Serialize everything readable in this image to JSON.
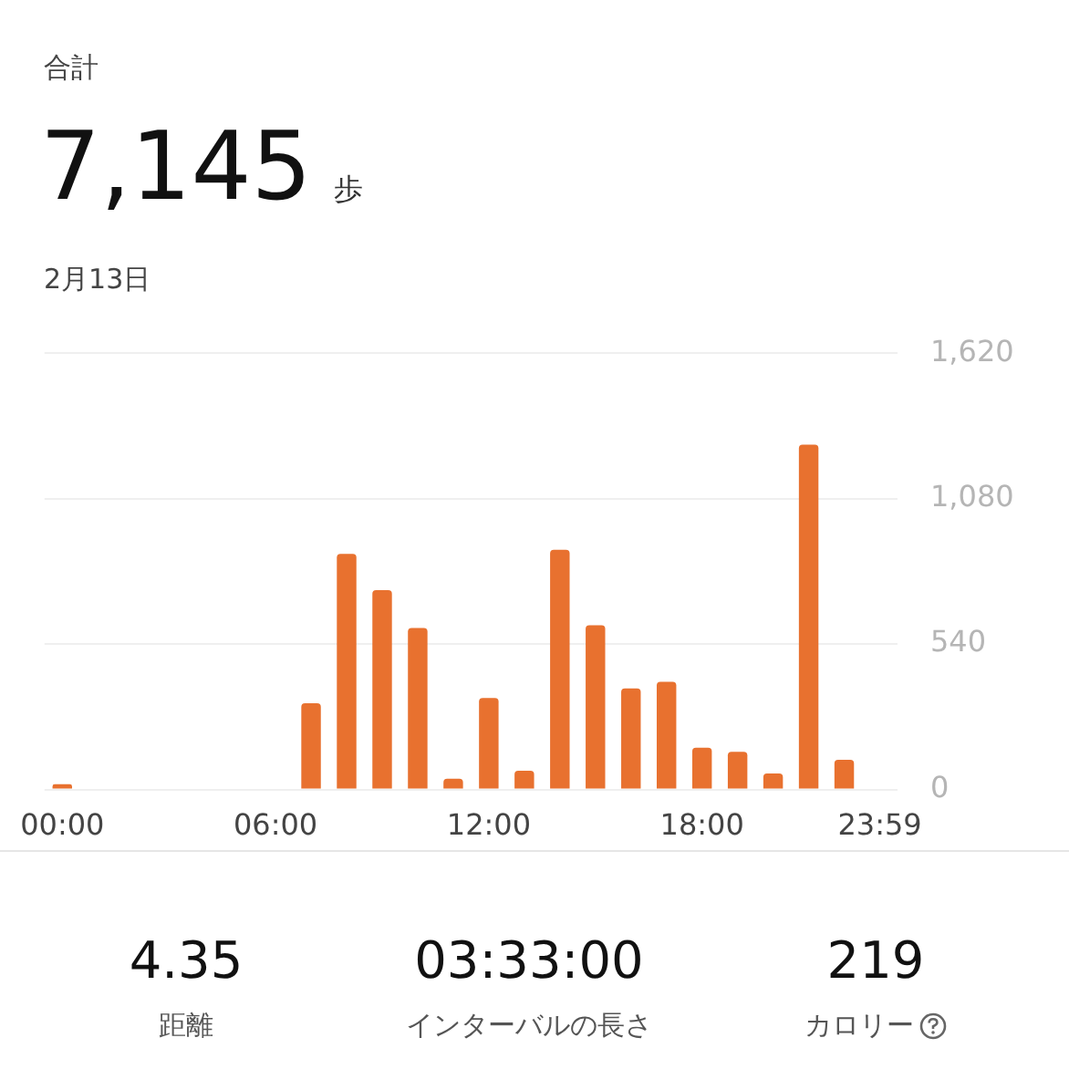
{
  "chart_data": {
    "type": "bar",
    "title": "7,145",
    "subtitle": "2月13日",
    "annotations": [
      "合計",
      "歩",
      "4.35",
      "距離",
      "03:33:00",
      "インターバルの長さ",
      "219",
      "カロリー"
    ],
    "categories": [
      "00:00",
      null,
      null,
      null,
      null,
      null,
      "06:00",
      null,
      null,
      null,
      null,
      null,
      "12:00",
      null,
      null,
      null,
      null,
      null,
      "18:00",
      null,
      null,
      null,
      null,
      "23:59"
    ],
    "values": [
      20,
      0,
      0,
      0,
      0,
      0,
      0,
      320,
      875,
      740,
      600,
      40,
      340,
      70,
      890,
      610,
      375,
      400,
      155,
      140,
      60,
      1280,
      110,
      0
    ],
    "color": "#e8712f",
    "ylim": [
      0,
      1620
    ],
    "yticks": [
      0,
      540,
      {
        "value": 1080,
        "label": "1,080"
      },
      {
        "value": 1620,
        "label": "1,620"
      }
    ],
    "grid": "y",
    "legend": false
  }
}
